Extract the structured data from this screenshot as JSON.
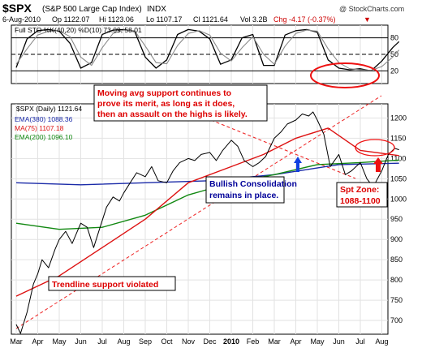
{
  "header": {
    "ticker": "$SPX",
    "name": "(S&P 500 Large Cap Index)",
    "exchange": "INDX",
    "date": "6-Aug-2010",
    "open": "Op 1122.07",
    "high": "Hi 1123.06",
    "low": "Lo 1107.17",
    "close": "Cl 1121.64",
    "volume": "Vol 3.2B",
    "change": "Chg -4.17 (-0.37%)",
    "change_arrow": "▼",
    "credit": "@ StockCharts.com"
  },
  "colors": {
    "price": "#000000",
    "ema380": "#1a2aa8",
    "ma75": "#dd1111",
    "ema200": "#118811",
    "sto_k": "#000000",
    "sto_d": "#8a8a8a",
    "annotation_red": "#dd0000",
    "annotation_blue": "#000099",
    "arrow_blue": "#1040e0",
    "arrow_red": "#ee1111"
  },
  "chart_data": [
    {
      "type": "line",
      "title": "Full STO %K(40,20) %D(10) 73.09, 58.01",
      "ylim": [
        0,
        100
      ],
      "y_ticks": [
        20,
        50,
        80
      ],
      "reference_lines": [
        {
          "y": 20,
          "style": "solid"
        },
        {
          "y": 50,
          "style": "dashed"
        },
        {
          "y": 80,
          "style": "solid"
        }
      ],
      "x": [
        0,
        0.5,
        1,
        1.5,
        2,
        2.5,
        3,
        3.5,
        4,
        4.5,
        5,
        5.5,
        6,
        6.5,
        7,
        7.5,
        8,
        8.5,
        9,
        9.5,
        10,
        10.5,
        11,
        11.5,
        12,
        12.5,
        13,
        13.5,
        14,
        14.5,
        15,
        15.5,
        16,
        16.5,
        17,
        17.5,
        17.8
      ],
      "series": [
        {
          "name": "%K",
          "values": [
            26,
            78,
            93,
            95,
            92,
            70,
            25,
            35,
            86,
            94,
            95,
            92,
            45,
            25,
            40,
            86,
            95,
            92,
            78,
            32,
            40,
            80,
            86,
            30,
            30,
            85,
            93,
            95,
            90,
            40,
            25,
            22,
            24,
            20,
            38,
            62,
            73.09
          ]
        },
        {
          "name": "%D",
          "values": [
            32,
            60,
            85,
            92,
            93,
            82,
            45,
            30,
            62,
            88,
            94,
            93,
            65,
            35,
            33,
            66,
            88,
            93,
            85,
            52,
            38,
            62,
            82,
            50,
            32,
            65,
            88,
            94,
            92,
            60,
            35,
            24,
            22,
            21,
            28,
            45,
            58.01
          ]
        }
      ]
    },
    {
      "type": "line",
      "title": "$SPX (Daily) 1121.64",
      "x_ticks": [
        "Mar",
        "Apr",
        "May",
        "Jun",
        "Jul",
        "Aug",
        "Sep",
        "Oct",
        "Nov",
        "Dec",
        "2010",
        "Feb",
        "Mar",
        "Apr",
        "May",
        "Jun",
        "Jul",
        "Aug"
      ],
      "ylim": [
        666,
        1235
      ],
      "y_ticks": [
        700,
        750,
        800,
        850,
        900,
        950,
        1000,
        1050,
        1100,
        1150,
        1200
      ],
      "legend": [
        {
          "label": "EMA(380) 1088.36",
          "color": "#1a2aa8"
        },
        {
          "label": "MA(75) 1107.18",
          "color": "#dd1111"
        },
        {
          "label": "EMA(200) 1096.10",
          "color": "#118811"
        }
      ],
      "series": [
        {
          "name": "Price",
          "x": [
            0,
            0.2,
            0.5,
            0.8,
            1,
            1.2,
            1.5,
            1.8,
            2,
            2.3,
            2.6,
            3,
            3.3,
            3.6,
            3.9,
            4.2,
            4.5,
            4.8,
            5,
            5.3,
            5.6,
            6,
            6.3,
            6.6,
            7,
            7.3,
            7.6,
            8,
            8.3,
            8.6,
            9,
            9.3,
            9.6,
            10,
            10.3,
            10.6,
            11,
            11.3,
            11.6,
            12,
            12.3,
            12.6,
            13,
            13.3,
            13.6,
            13.8,
            14,
            14.3,
            14.6,
            15,
            15.3,
            15.6,
            16,
            16.3,
            16.6,
            17,
            17.3,
            17.6,
            17.8
          ],
          "values": [
            690,
            668,
            720,
            790,
            815,
            850,
            830,
            875,
            900,
            920,
            890,
            940,
            930,
            880,
            930,
            980,
            1005,
            995,
            1015,
            1040,
            1065,
            1055,
            1080,
            1045,
            1040,
            1070,
            1090,
            1100,
            1095,
            1110,
            1115,
            1095,
            1120,
            1145,
            1130,
            1095,
            1080,
            1090,
            1105,
            1150,
            1165,
            1185,
            1195,
            1210,
            1205,
            1215,
            1195,
            1160,
            1080,
            1110,
            1060,
            1070,
            1090,
            1050,
            1030,
            1070,
            1110,
            1125,
            1121.64
          ]
        },
        {
          "name": "EMA(380)",
          "x": [
            0,
            3,
            6,
            9,
            12,
            15,
            17.8
          ],
          "values": [
            1040,
            1035,
            1040,
            1045,
            1060,
            1085,
            1088.36
          ]
        },
        {
          "name": "MA(75)",
          "x": [
            0,
            2,
            4,
            6,
            8,
            10,
            11.5,
            13,
            14.5,
            16,
            17.8
          ],
          "values": [
            760,
            810,
            880,
            950,
            1040,
            1080,
            1110,
            1150,
            1175,
            1120,
            1107.18
          ]
        },
        {
          "name": "EMA(200)",
          "x": [
            0,
            2,
            4,
            6,
            8,
            10,
            12,
            14,
            16,
            17.8
          ],
          "values": [
            940,
            925,
            930,
            960,
            1010,
            1040,
            1060,
            1085,
            1090,
            1096.1
          ]
        }
      ],
      "annotations": [
        {
          "text_lines": [
            "Moving avg support continues to",
            "prove its merit, as long as it does,",
            "then an assault on the highs is likely."
          ],
          "color": "#dd0000"
        },
        {
          "text_lines": [
            "Bullish Consolidation",
            "remains in place."
          ],
          "color": "#000099"
        },
        {
          "text_lines": [
            "Spt Zone:",
            "1088-1100"
          ],
          "color": "#dd0000"
        },
        {
          "text_lines": [
            "Trendline support violated"
          ],
          "color": "#dd0000"
        }
      ]
    }
  ]
}
